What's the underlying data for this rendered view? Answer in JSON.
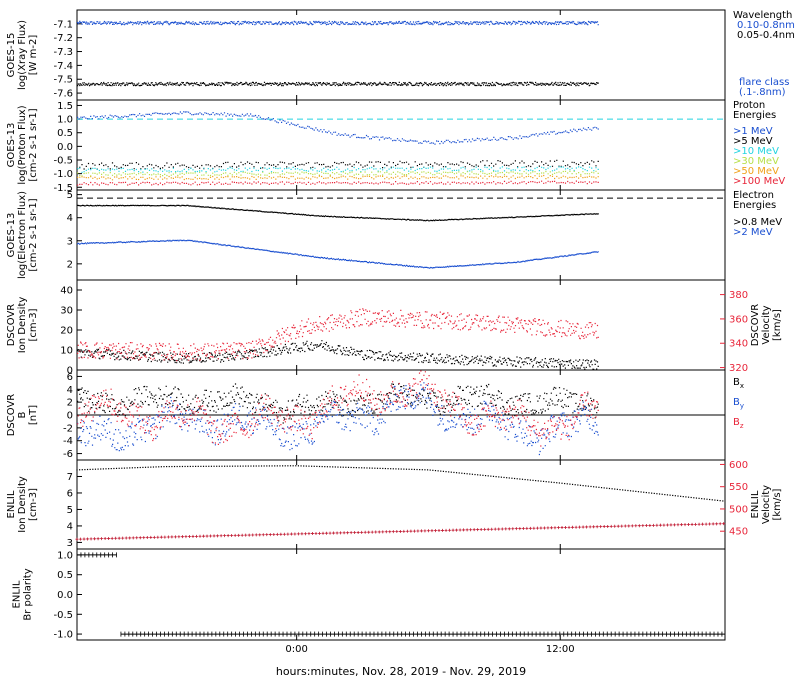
{
  "figure": {
    "xlabel": "hours:minutes, Nov. 28, 2019 - Nov. 29, 2019",
    "xticks": [
      {
        "hour": 0,
        "label": "0:00"
      },
      {
        "hour": 12,
        "label": "12:00"
      }
    ],
    "xlim_hours": [
      -10,
      19.5
    ],
    "data_end_hour": 13.7
  },
  "colors": {
    "black": "#000000",
    "blue": "#1a4fd0",
    "cyan": "#22d4e0",
    "green": "#b8e04a",
    "orange": "#f0a21a",
    "red": "#e8263a",
    "dark_red": "#c01830"
  },
  "chart_data": [
    {
      "type": "scatter",
      "panel": "xray",
      "ylabel": [
        "GOES-15",
        "log(Xray Flux)",
        "[W m-2]"
      ],
      "ylim": [
        -7.65,
        -7.0
      ],
      "yticks": [
        {
          "v": -7.1,
          "label": "-7.1"
        },
        {
          "v": -7.2,
          "label": "-7.2"
        },
        {
          "v": -7.3,
          "label": "-7.3"
        },
        {
          "v": -7.4,
          "label": "-7.4"
        },
        {
          "v": -7.5,
          "label": "-7.5"
        },
        {
          "v": -7.6,
          "label": "-7.6"
        }
      ],
      "legend_title": [
        "Wavelength"
      ],
      "series": [
        {
          "name": "0.10-0.8nm",
          "color": "#1a4fd0",
          "x": [
            -10,
            0,
            13.7
          ],
          "y": [
            -7.09,
            -7.09,
            -7.09
          ]
        },
        {
          "name": "0.05-0.4nm",
          "color": "#000000",
          "x": [
            -10,
            0,
            13.7
          ],
          "y": [
            -7.53,
            -7.53,
            -7.53
          ]
        }
      ],
      "notes": [
        {
          "lines": [
            "flare class",
            "(.1-.8nm)"
          ],
          "color": "#1a4fd0"
        }
      ]
    },
    {
      "type": "scatter",
      "panel": "proton",
      "ylabel": [
        "GOES-13",
        "log(Proton Flux)",
        "[cm-2 s-1 sr-1]"
      ],
      "ylim": [
        -1.6,
        1.7
      ],
      "yticks": [
        {
          "v": 1.5,
          "label": "1.5"
        },
        {
          "v": 1.0,
          "label": "1.0"
        },
        {
          "v": 0.5,
          "label": "0.5"
        },
        {
          "v": 0.0,
          "label": "0.0"
        },
        {
          "v": -0.5,
          "label": "-0.5"
        },
        {
          "v": -1.0,
          "label": "-1.0"
        },
        {
          "v": -1.5,
          "label": "-1.5"
        }
      ],
      "threshold": {
        "v": 1.0,
        "color": "#22d4e0"
      },
      "legend_title": [
        "Proton",
        "Energies"
      ],
      "series": [
        {
          "name": ">1 MeV",
          "color": "#1a4fd0",
          "x": [
            -10,
            -5,
            -2,
            2,
            6,
            10,
            13.7
          ],
          "y": [
            1.05,
            1.25,
            1.15,
            0.45,
            0.15,
            0.35,
            0.7
          ]
        },
        {
          "name": ">5 MeV",
          "color": "#000000",
          "x": [
            -10,
            13.7
          ],
          "y": [
            -0.7,
            -0.6
          ]
        },
        {
          "name": ">10 MeV",
          "color": "#22d4e0",
          "x": [
            -10,
            13.7
          ],
          "y": [
            -0.85,
            -0.8
          ]
        },
        {
          "name": ">30 MeV",
          "color": "#b8e04a",
          "x": [
            -10,
            13.7
          ],
          "y": [
            -1.0,
            -0.95
          ]
        },
        {
          "name": ">50 MeV",
          "color": "#f0a21a",
          "x": [
            -10,
            13.7
          ],
          "y": [
            -1.15,
            -1.1
          ]
        },
        {
          "name": ">100 MeV",
          "color": "#e8263a",
          "x": [
            -10,
            13.7
          ],
          "y": [
            -1.35,
            -1.3
          ]
        }
      ]
    },
    {
      "type": "line",
      "panel": "electron",
      "ylabel": [
        "GOES-13",
        "log(Electron Flux)",
        "[cm-2 s-1 sr-1]"
      ],
      "ylim": [
        1.3,
        5.2
      ],
      "yticks": [
        {
          "v": 5,
          "label": "5"
        },
        {
          "v": 4,
          "label": "4"
        },
        {
          "v": 3,
          "label": "3"
        },
        {
          "v": 2,
          "label": "2"
        }
      ],
      "threshold": {
        "v": 4.85,
        "color": "#000000"
      },
      "legend_title": [
        "Electron",
        "Energies"
      ],
      "series": [
        {
          "name": ">0.8 MeV",
          "color": "#000000",
          "x": [
            -10,
            -5,
            1,
            6,
            10,
            13.7
          ],
          "y": [
            4.55,
            4.55,
            4.1,
            3.9,
            4.05,
            4.2
          ]
        },
        {
          "name": ">2 MeV",
          "color": "#1a4fd0",
          "x": [
            -10,
            -5,
            1,
            6,
            10,
            13.7
          ],
          "y": [
            2.9,
            3.05,
            2.3,
            1.85,
            2.1,
            2.55
          ]
        }
      ]
    },
    {
      "type": "scatter",
      "panel": "dscovr-plasma",
      "ylabel": [
        "DSCOVR",
        "Ion Density",
        "[cm-3]"
      ],
      "ylim": [
        0,
        45
      ],
      "yticks": [
        {
          "v": 40,
          "label": "40"
        },
        {
          "v": 30,
          "label": "30"
        },
        {
          "v": 20,
          "label": "20"
        },
        {
          "v": 10,
          "label": "10"
        },
        {
          "v": 0,
          "label": "0"
        }
      ],
      "ylabel_right": [
        "DSCOVR",
        "Velocity",
        "[km/s]"
      ],
      "ylim_right": [
        318,
        392
      ],
      "yticks_right": [
        {
          "v": 380,
          "label": "380"
        },
        {
          "v": 360,
          "label": "360"
        },
        {
          "v": 340,
          "label": "340"
        },
        {
          "v": 320,
          "label": "320"
        }
      ],
      "series": [
        {
          "name": "",
          "color": "#000000",
          "axis": "left",
          "x": [
            -10,
            -5,
            -3,
            1,
            3,
            8,
            13.7
          ],
          "y": [
            9,
            6,
            7,
            13,
            8,
            5,
            3
          ]
        },
        {
          "name": "",
          "color": "#e8263a",
          "axis": "right",
          "x": [
            -10,
            -5,
            -2,
            0,
            3,
            8,
            13.7
          ],
          "y": [
            335,
            333,
            335,
            352,
            362,
            358,
            350
          ]
        }
      ]
    },
    {
      "type": "scatter",
      "panel": "dscovr-b",
      "ylabel": [
        "DSCOVR",
        "B",
        "[nT]"
      ],
      "ylim": [
        -7,
        7
      ],
      "yticks": [
        {
          "v": 6,
          "label": "6"
        },
        {
          "v": 4,
          "label": "4"
        },
        {
          "v": 2,
          "label": "2"
        },
        {
          "v": 0,
          "label": "0"
        },
        {
          "v": -2,
          "label": "-2"
        },
        {
          "v": -4,
          "label": "-4"
        },
        {
          "v": -6,
          "label": "-6"
        }
      ],
      "zero_line": true,
      "series": [
        {
          "name": "Bx",
          "color": "#000000",
          "x": [
            -10,
            -5,
            0,
            5,
            10,
            13.7
          ],
          "y": [
            2,
            3,
            1,
            3,
            2,
            2
          ]
        },
        {
          "name": "By",
          "color": "#1a4fd0",
          "x": [
            -10,
            -5,
            0,
            5,
            10,
            13.7
          ],
          "y": [
            -3,
            -1,
            -2,
            2,
            -2,
            -1
          ]
        },
        {
          "name": "Bz",
          "color": "#e8263a",
          "x": [
            -10,
            -5,
            0,
            5,
            10,
            13.7
          ],
          "y": [
            1,
            -1,
            0,
            4,
            -1,
            -1
          ]
        }
      ]
    },
    {
      "type": "scatter",
      "panel": "enlil-plasma",
      "ylabel": [
        "ENLIL",
        "Ion Density",
        "[cm-3]"
      ],
      "ylim": [
        2.6,
        8.0
      ],
      "yticks": [
        {
          "v": 7,
          "label": "7"
        },
        {
          "v": 6,
          "label": "6"
        },
        {
          "v": 5,
          "label": "5"
        },
        {
          "v": 4,
          "label": "4"
        },
        {
          "v": 3,
          "label": "3"
        }
      ],
      "ylabel_right": [
        "ENLIL",
        "Velocity",
        "[km/s]"
      ],
      "ylim_right": [
        410,
        610
      ],
      "yticks_right": [
        {
          "v": 600,
          "label": "600"
        },
        {
          "v": 550,
          "label": "550"
        },
        {
          "v": 500,
          "label": "500"
        },
        {
          "v": 450,
          "label": "450"
        }
      ],
      "series": [
        {
          "name": "",
          "color": "#000000",
          "axis": "left",
          "x": [
            -10,
            -6,
            0,
            6,
            12,
            19.5
          ],
          "y": [
            7.4,
            7.6,
            7.65,
            7.4,
            6.6,
            5.5
          ]
        },
        {
          "name": "",
          "color": "#c01830",
          "axis": "right",
          "x": [
            -10,
            19.5
          ],
          "y": [
            432,
            467
          ]
        }
      ]
    },
    {
      "type": "scatter",
      "panel": "enlil-polarity",
      "ylabel": [
        "ENLIL",
        "Br polarity"
      ],
      "ylim": [
        -1.15,
        1.15
      ],
      "yticks": [
        {
          "v": 1.0,
          "label": "1.0"
        },
        {
          "v": 0.5,
          "label": "0.5"
        },
        {
          "v": 0.0,
          "label": "0.0"
        },
        {
          "v": -0.5,
          "label": "-0.5"
        },
        {
          "v": -1.0,
          "label": "-1.0"
        }
      ],
      "series": [
        {
          "name": "",
          "color": "#000000",
          "x": [
            -10,
            -8.2
          ],
          "y": [
            1,
            1
          ]
        },
        {
          "name": "",
          "color": "#000000",
          "x": [
            -8.0,
            19.5
          ],
          "y": [
            -1,
            -1
          ]
        }
      ]
    }
  ]
}
